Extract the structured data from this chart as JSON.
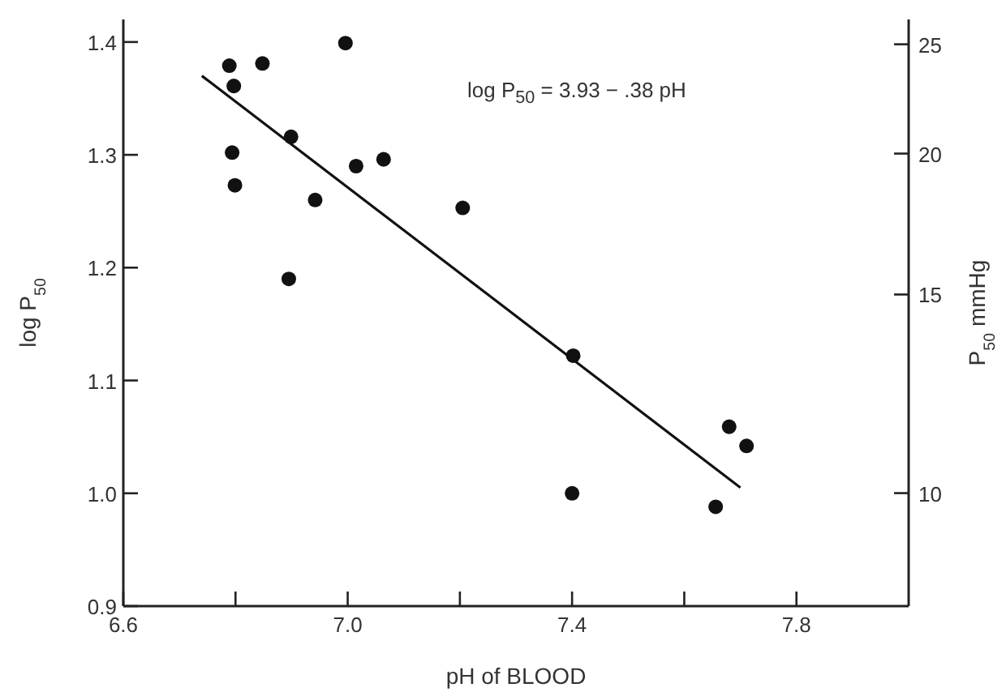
{
  "chart_data": {
    "type": "scatter",
    "xlabel": "pH of BLOOD",
    "ylabel": "log P$_{50}$",
    "y2label": "P$_{50}$ mmHg",
    "annotations": [
      "log P$_{50}$ = 3.93 − .38 pH"
    ],
    "xlim": [
      6.6,
      8.0
    ],
    "xticks": [
      6.6,
      {
        "value": 6.8,
        "label": null
      },
      {
        "value": 7,
        "label": "7.0"
      },
      {
        "value": 7.2,
        "label": null
      },
      7.4,
      {
        "value": 7.6,
        "label": null
      },
      7.8
    ],
    "ylim": [
      0.9,
      1.42
    ],
    "yticks": [
      0.9,
      {
        "value": 1,
        "label": "1.0"
      },
      1.1,
      1.2,
      1.3,
      1.4
    ],
    "y2lim": [
      7.94,
      26.3
    ],
    "y2ticks": [
      10,
      15,
      20,
      25
    ],
    "log": "y2",
    "marker": "circle",
    "series": [
      {
        "color": "#111111",
        "x": [
          6.789,
          6.797,
          6.848,
          6.996,
          6.794,
          6.799,
          6.899,
          7.015,
          7.064,
          6.942,
          6.895,
          7.205,
          7.402,
          7.4,
          7.656,
          7.68,
          7.711
        ],
        "values": [
          1.379,
          1.361,
          1.381,
          1.399,
          1.302,
          1.273,
          1.316,
          1.29,
          1.296,
          1.26,
          1.19,
          1.253,
          1.122,
          1.0,
          0.988,
          1.059,
          1.042
        ]
      },
      {
        "type": "line",
        "color": "#111111",
        "marker": "none",
        "line_style": "solid",
        "x": [
          6.74,
          7.7
        ],
        "values": [
          1.37,
          1.005
        ]
      }
    ]
  }
}
